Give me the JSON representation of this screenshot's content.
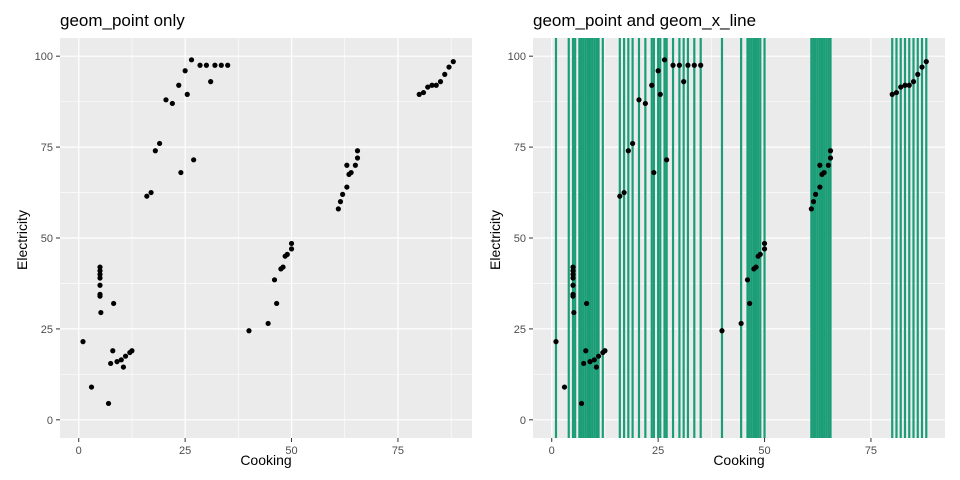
{
  "chart_data": [
    {
      "type": "scatter",
      "title": "geom_point only",
      "xlabel": "Cooking",
      "ylabel": "Electricity",
      "xlim": [
        -4.4,
        92.4
      ],
      "ylim": [
        -5,
        105
      ],
      "xticks": [
        0,
        25,
        50,
        75
      ],
      "yticks": [
        0,
        25,
        50,
        75,
        100
      ],
      "grid": true,
      "point_color": "#000000",
      "points": [
        [
          1,
          21.5
        ],
        [
          3,
          9
        ],
        [
          5,
          42
        ],
        [
          5,
          41
        ],
        [
          5,
          40
        ],
        [
          5,
          39
        ],
        [
          5,
          37
        ],
        [
          5,
          34.5
        ],
        [
          5,
          34
        ],
        [
          5.2,
          29.5
        ],
        [
          7,
          4.5
        ],
        [
          7.5,
          15.5
        ],
        [
          8,
          19
        ],
        [
          8.2,
          32
        ],
        [
          9,
          16
        ],
        [
          10,
          16.5
        ],
        [
          10.5,
          14.5
        ],
        [
          11,
          17.5
        ],
        [
          12,
          18.5
        ],
        [
          12.5,
          19
        ],
        [
          16,
          61.5
        ],
        [
          17,
          62.5
        ],
        [
          18,
          74
        ],
        [
          19,
          76
        ],
        [
          20.5,
          88
        ],
        [
          22,
          87
        ],
        [
          23.5,
          92
        ],
        [
          24,
          68
        ],
        [
          25,
          96
        ],
        [
          25.5,
          89.5
        ],
        [
          26.5,
          99
        ],
        [
          27,
          71.5
        ],
        [
          28.5,
          97.5
        ],
        [
          30,
          97.5
        ],
        [
          31,
          93
        ],
        [
          32,
          97.5
        ],
        [
          33.5,
          97.5
        ],
        [
          35,
          97.5
        ],
        [
          40,
          24.5
        ],
        [
          44.5,
          26.5
        ],
        [
          46,
          38.5
        ],
        [
          46.5,
          32
        ],
        [
          47.5,
          41.5
        ],
        [
          48,
          42
        ],
        [
          48.5,
          45
        ],
        [
          49,
          45.5
        ],
        [
          50,
          47
        ],
        [
          50,
          48.5
        ],
        [
          61,
          58
        ],
        [
          61.5,
          60
        ],
        [
          62,
          62
        ],
        [
          63,
          64
        ],
        [
          63.5,
          67.5
        ],
        [
          63,
          70
        ],
        [
          64,
          68
        ],
        [
          65,
          70
        ],
        [
          65.5,
          72
        ],
        [
          65.5,
          74
        ],
        [
          80,
          89.5
        ],
        [
          81,
          90
        ],
        [
          82,
          91.5
        ],
        [
          83,
          92
        ],
        [
          84,
          92
        ],
        [
          85,
          93
        ],
        [
          86,
          95
        ],
        [
          87,
          97
        ],
        [
          88,
          98.5
        ]
      ]
    },
    {
      "type": "scatter",
      "title": "geom_point and geom_x_line",
      "xlabel": "Cooking",
      "ylabel": "Electricity",
      "xlim": [
        -4.4,
        92.4
      ],
      "ylim": [
        -5,
        105
      ],
      "xticks": [
        0,
        25,
        50,
        75
      ],
      "yticks": [
        0,
        25,
        50,
        75,
        100
      ],
      "grid": true,
      "point_color": "#000000",
      "vline_color": "#1b9e77",
      "points_same_as_panel": 1,
      "vlines": [
        1,
        4,
        5,
        5.5,
        6.5,
        7,
        7.5,
        8,
        8.5,
        9,
        9.5,
        10,
        10.5,
        11,
        12,
        16,
        17,
        18,
        19,
        20.5,
        22,
        23.5,
        24,
        25,
        25.5,
        26.5,
        27,
        28.5,
        30,
        31,
        32,
        33.5,
        35,
        40,
        44.5,
        46,
        46.5,
        47,
        47.5,
        48,
        48.5,
        49,
        50,
        61,
        61.5,
        62,
        62.5,
        63,
        63.5,
        64,
        64.5,
        65,
        65.5,
        80,
        81,
        82,
        83,
        84,
        85,
        86,
        87,
        88
      ]
    }
  ]
}
